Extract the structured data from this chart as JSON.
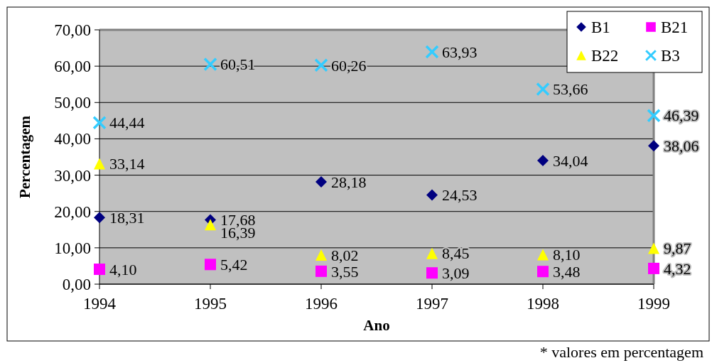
{
  "chart_data": {
    "type": "scatter",
    "xlabel": "Ano",
    "ylabel": "Percentagem",
    "x": [
      1994,
      1995,
      1996,
      1997,
      1998,
      1999
    ],
    "xlim": [
      1994,
      1999
    ],
    "xticks": [
      1994,
      1995,
      1996,
      1997,
      1998,
      1999
    ],
    "ylim": [
      0,
      70
    ],
    "yticks": [
      {
        "value": 0,
        "label": "0,00"
      },
      {
        "value": 10,
        "label": "10,00"
      },
      {
        "value": 20,
        "label": "20,00"
      },
      {
        "value": 30,
        "label": "30,00"
      },
      {
        "value": 40,
        "label": "40,00"
      },
      {
        "value": 50,
        "label": "50,00"
      },
      {
        "value": 60,
        "label": "60,00"
      },
      {
        "value": 70,
        "label": "70,00"
      }
    ],
    "series": [
      {
        "name": "B1",
        "color": "#000080",
        "marker": "diamond",
        "values": [
          18.31,
          17.68,
          28.18,
          24.53,
          34.04,
          38.06
        ],
        "value_labels": [
          "18,31",
          "17,68",
          "28,18",
          "24,53",
          "34,04",
          "38,06"
        ]
      },
      {
        "name": "B21",
        "color": "#ff00ff",
        "marker": "square",
        "values": [
          4.1,
          5.42,
          3.55,
          3.09,
          3.48,
          4.32
        ],
        "value_labels": [
          "4,10",
          "5,42",
          "3,55",
          "3,09",
          "3,48",
          "4,32"
        ]
      },
      {
        "name": "B22",
        "color": "#ffff00",
        "marker": "triangle",
        "values": [
          33.14,
          16.39,
          8.02,
          8.45,
          8.1,
          9.87
        ],
        "value_labels": [
          "33,14",
          "16,39",
          "8,02",
          "8,45",
          "8,10",
          "9,87"
        ]
      },
      {
        "name": "B3",
        "color": "#33ccff",
        "marker": "cross",
        "values": [
          44.44,
          60.51,
          60.26,
          63.93,
          53.66,
          46.39
        ],
        "value_labels": [
          "44,44",
          "60,51",
          "60,26",
          "63,93",
          "53,66",
          "46,39"
        ]
      }
    ],
    "grid": "y",
    "legend": "top right",
    "annotations": [
      "* valores em percentagem"
    ]
  }
}
